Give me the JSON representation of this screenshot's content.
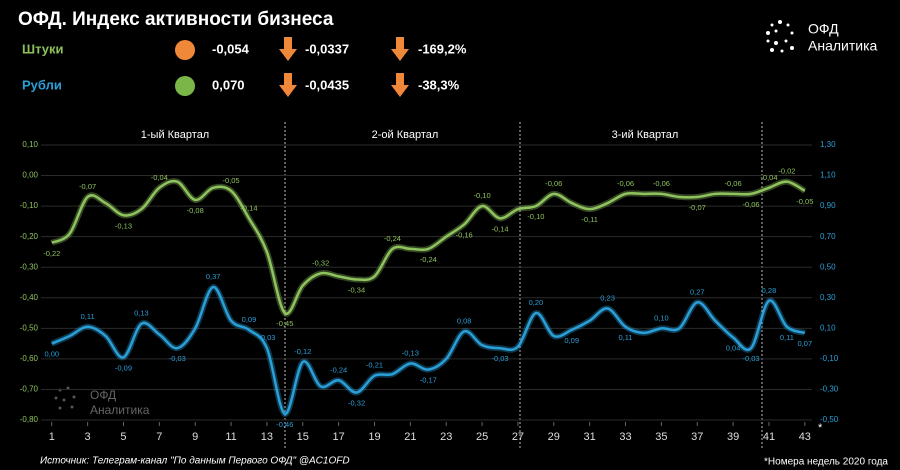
{
  "chart_data": {
    "type": "line",
    "title": "ОФД. Индекс активности бизнеса",
    "summary": [
      {
        "index": "-0,054",
        "change": "-0,0337",
        "change_pct": "-169,2%",
        "dot_color": "#f0883a"
      },
      {
        "index": "0,070",
        "change": "-0,0435",
        "change_pct": "-38,3%",
        "dot_color": "#7ab648"
      }
    ],
    "logo": [
      "ОФД",
      "Аналитика"
    ],
    "quarters": [
      "1-ый Квартал",
      "2-ой Квартал",
      "3-ий Квартал"
    ],
    "source": "Источник: Телеграм-канал \"По данным Первого ОФД\" @AC1OFD",
    "footnote": "*Номера недель 2020 года",
    "axis_note": "*",
    "x": [
      1,
      2,
      3,
      4,
      5,
      6,
      7,
      8,
      9,
      10,
      11,
      12,
      13,
      14,
      15,
      16,
      17,
      18,
      19,
      20,
      21,
      22,
      23,
      24,
      25,
      26,
      27,
      28,
      29,
      30,
      31,
      32,
      33,
      34,
      35,
      36,
      37,
      38,
      39,
      40,
      41,
      42,
      43
    ],
    "xlim": [
      0.4,
      43.4
    ],
    "xticks": [
      1,
      3,
      5,
      7,
      9,
      11,
      13,
      15,
      17,
      19,
      21,
      23,
      25,
      27,
      29,
      31,
      33,
      35,
      37,
      39,
      41,
      43
    ],
    "ylim": [
      -0.8,
      0.1
    ],
    "yticks": [
      {
        "value": 0.1,
        "label": "0,10"
      },
      {
        "value": 0,
        "label": "0,00"
      },
      {
        "value": -0.1,
        "label": "-0,10"
      },
      {
        "value": -0.2,
        "label": "-0,20"
      },
      {
        "value": -0.3,
        "label": "-0,30"
      },
      {
        "value": -0.4,
        "label": "-0,40"
      },
      {
        "value": -0.5,
        "label": "-0,50"
      },
      {
        "value": -0.6,
        "label": "-0,60"
      },
      {
        "value": -0.7,
        "label": "-0,70"
      },
      {
        "value": -0.8,
        "label": "-0,80"
      }
    ],
    "y2lim": [
      -0.5,
      1.3
    ],
    "y2ticks": [
      {
        "value": 1.3,
        "label": "1,30"
      },
      {
        "value": 1.1,
        "label": "1,10"
      },
      {
        "value": 0.9,
        "label": "0,90"
      },
      {
        "value": 0.7,
        "label": "0,70"
      },
      {
        "value": 0.5,
        "label": "0,50"
      },
      {
        "value": 0.3,
        "label": "0,30"
      },
      {
        "value": 0.1,
        "label": "0,10"
      },
      {
        "value": -0.1,
        "label": "-0,10"
      },
      {
        "value": -0.3,
        "label": "-0,30"
      },
      {
        "value": -0.5,
        "label": "-0,50"
      }
    ],
    "grid": true,
    "series": [
      {
        "name": "Штуки",
        "color": "#8fc35e",
        "values": [
          -0.22,
          -0.19,
          -0.07,
          -0.09,
          -0.13,
          -0.11,
          -0.04,
          -0.02,
          -0.08,
          -0.04,
          -0.05,
          -0.14,
          -0.25,
          -0.45,
          -0.36,
          -0.32,
          -0.33,
          -0.34,
          -0.33,
          -0.24,
          -0.24,
          -0.24,
          -0.2,
          -0.16,
          -0.1,
          -0.14,
          -0.11,
          -0.1,
          -0.06,
          -0.09,
          -0.11,
          -0.09,
          -0.06,
          -0.06,
          -0.06,
          -0.07,
          -0.07,
          -0.06,
          -0.06,
          -0.06,
          -0.04,
          -0.02,
          -0.05
        ],
        "value_labels": [
          "-0,22",
          null,
          "-0,07",
          null,
          "-0,13",
          null,
          "-0,04",
          null,
          "-0,08",
          null,
          "-0,05",
          "-0,14",
          null,
          "-0,45",
          null,
          "-0,32",
          null,
          "-0,34",
          null,
          "-0,24",
          null,
          "-0,24",
          null,
          "-0,16",
          "-0,10",
          "-0,14",
          null,
          "-0,10",
          "-0,06",
          null,
          "-0,11",
          null,
          "-0,06",
          null,
          "-0,06",
          null,
          "-0,07",
          null,
          "-0,06",
          "-0,06",
          "-0,04",
          "-0,02",
          "-0,05"
        ]
      },
      {
        "name": "Рубли",
        "color": "#2a9fd8",
        "axis": "y2",
        "values": [
          0,
          0.05,
          0.11,
          0.05,
          -0.09,
          0.13,
          0.06,
          -0.03,
          0.1,
          0.37,
          0.15,
          0.09,
          -0.03,
          -0.46,
          -0.12,
          -0.28,
          -0.24,
          -0.32,
          -0.21,
          -0.2,
          -0.13,
          -0.17,
          -0.1,
          0.08,
          -0.01,
          -0.03,
          -0.02,
          0.2,
          0.05,
          0.09,
          0.15,
          0.23,
          0.11,
          0.07,
          0.1,
          0.1,
          0.27,
          0.15,
          0.04,
          -0.03,
          0.28,
          0.11,
          0.07
        ],
        "value_labels": [
          "0,00",
          null,
          "0,11",
          null,
          "-0,09",
          "0,13",
          null,
          "-0,03",
          null,
          "0,37",
          null,
          "0,09",
          "-0,03",
          "-0,46",
          "-0,12",
          null,
          "-0,24",
          "-0,32",
          "-0,21",
          null,
          "-0,13",
          "-0,17",
          null,
          "0,08",
          null,
          "-0,03",
          null,
          "0,20",
          null,
          "0,09",
          null,
          "0,23",
          "0,11",
          null,
          "0,10",
          null,
          "0,27",
          null,
          "0,04",
          "-0,03",
          "0,28",
          "0,11",
          "0,07"
        ]
      }
    ]
  }
}
